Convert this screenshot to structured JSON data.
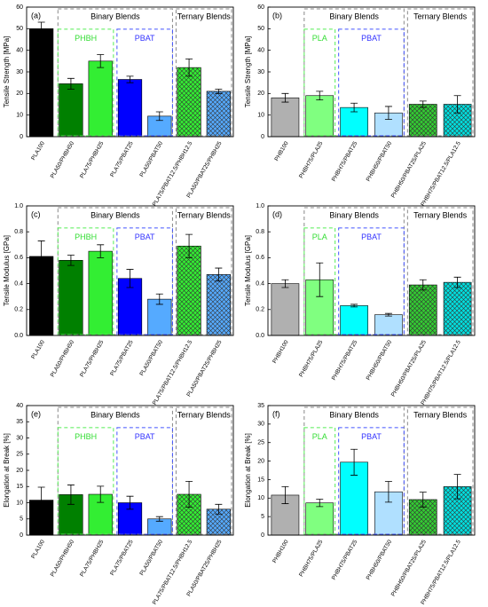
{
  "chart_data": [
    {
      "type": "bar",
      "label": "(a)",
      "y_label": "Tensile Strength [MPa]",
      "categories": [
        "PLA100",
        "PLA50/PHBH50",
        "PLA75/PHBH25",
        "PLA75/PBAT25",
        "PLA50/PBAT50",
        "PLA75/PBAT12.5/PHBH12.5",
        "PLA50/PBAT25/PHBH25"
      ],
      "values": [
        50,
        24.5,
        35,
        26.5,
        9.5,
        32,
        21
      ],
      "errors": [
        3,
        2.5,
        3,
        1.5,
        2,
        4,
        1
      ],
      "colors": [
        "#000000",
        "#008000",
        "#33ee33",
        "#0000ff",
        "#55aaff",
        "#33ee33",
        "#55aaff"
      ],
      "hatched": [
        false,
        false,
        false,
        false,
        false,
        true,
        true
      ],
      "ylim": [
        0,
        60
      ],
      "yticks": [
        0,
        10,
        20,
        30,
        40,
        50,
        60
      ],
      "binary_label": "Binary Blends",
      "ternary_label": "Ternary Blends",
      "group1_label": "PHBH",
      "group2_label": "PBAT"
    },
    {
      "type": "bar",
      "label": "(b)",
      "y_label": "Tensile Strength [MPa]",
      "categories": [
        "PHB100",
        "PHBH75/PLA25",
        "PHBH75/PBAT25",
        "PHBH50/PBAT50",
        "PHBH50/PBAT25/PLA25",
        "PHBH75/PBAT12.5/PLA12.5"
      ],
      "values": [
        18,
        19,
        13.5,
        11,
        15,
        15
      ],
      "errors": [
        2,
        2,
        2,
        3,
        1.5,
        4
      ],
      "colors": [
        "#b0b0b0",
        "#80ff80",
        "#00ffff",
        "#b0e0ff",
        "#33cc33",
        "#00e0e0"
      ],
      "hatched": [
        false,
        false,
        false,
        false,
        true,
        true
      ],
      "ylim": [
        0,
        60
      ],
      "yticks": [
        0,
        10,
        20,
        30,
        40,
        50,
        60
      ],
      "binary_label": "Binary Blends",
      "ternary_label": "Ternary Blends",
      "group1_label": "PLA",
      "group2_label": "PBAT"
    },
    {
      "type": "bar",
      "label": "(c)",
      "y_label": "Tensile Modulus [GPa]",
      "categories": [
        "PLA100",
        "PLA50/PHBH50",
        "PLA75/PHBH25",
        "PLA75/PBAT25",
        "PLA50/PBAT50",
        "PLA75/PBAT12.5/PHBH12.5",
        "PLA50/PBAT25/PHBH25"
      ],
      "values": [
        0.61,
        0.58,
        0.65,
        0.44,
        0.28,
        0.69,
        0.47
      ],
      "errors": [
        0.12,
        0.04,
        0.05,
        0.07,
        0.04,
        0.09,
        0.05
      ],
      "colors": [
        "#000000",
        "#008000",
        "#33ee33",
        "#0000ff",
        "#55aaff",
        "#33ee33",
        "#55aaff"
      ],
      "hatched": [
        false,
        false,
        false,
        false,
        false,
        true,
        true
      ],
      "ylim": [
        0,
        1
      ],
      "yticks": [
        {
          "value": 0,
          "label": "0.0"
        },
        0.2,
        0.4,
        0.6,
        0.8,
        {
          "value": 1,
          "label": "1.0"
        }
      ],
      "binary_label": "Binary Blends",
      "ternary_label": "Ternary Blends",
      "group1_label": "PHBH",
      "group2_label": "PBAT"
    },
    {
      "type": "bar",
      "label": "(d)",
      "y_label": "Tensile Modulus [GPa]",
      "categories": [
        "PHBH100",
        "PHBH75/PLA25",
        "PHBH75/PBAT25",
        "PHBH50/PBAT50",
        "PHBH50/PBAT25/PLA25",
        "PHBH75/PBAT12.5/PLA12.5"
      ],
      "values": [
        0.4,
        0.43,
        0.23,
        0.16,
        0.39,
        0.41
      ],
      "errors": [
        0.03,
        0.13,
        0.01,
        0.01,
        0.04,
        0.04
      ],
      "colors": [
        "#b0b0b0",
        "#80ff80",
        "#00ffff",
        "#b0e0ff",
        "#33cc33",
        "#00e0e0"
      ],
      "hatched": [
        false,
        false,
        false,
        false,
        true,
        true
      ],
      "ylim": [
        0,
        1
      ],
      "yticks": [
        {
          "value": 0,
          "label": "0.0"
        },
        0.2,
        0.4,
        0.6,
        0.8,
        {
          "value": 1,
          "label": "1.0"
        }
      ],
      "binary_label": "Binary Blends",
      "ternary_label": "Ternary Blends",
      "group1_label": "PLA",
      "group2_label": "PBAT"
    },
    {
      "type": "bar",
      "label": "(e)",
      "y_label": "Elongation at Break [%]",
      "categories": [
        "PLA100",
        "PLA50/PHBH50",
        "PLA75/PHBH25",
        "PLA75/PBAT25",
        "PLA50/PBAT50",
        "PLA75/PBAT12.5/PHBH12.5",
        "PLA50/PBAT25/PHBH25"
      ],
      "values": [
        10.8,
        12.5,
        12.6,
        10,
        5,
        12.6,
        8
      ],
      "errors": [
        4,
        3,
        2.5,
        2,
        0.7,
        4,
        1.5
      ],
      "colors": [
        "#000000",
        "#008000",
        "#33ee33",
        "#0000ff",
        "#55aaff",
        "#33ee33",
        "#55aaff"
      ],
      "hatched": [
        false,
        false,
        false,
        false,
        false,
        true,
        true
      ],
      "ylim": [
        0,
        40
      ],
      "yticks": [
        0,
        5,
        10,
        15,
        20,
        25,
        30,
        35,
        40
      ],
      "binary_label": "Binary Blends",
      "ternary_label": "Ternary Blends",
      "group1_label": "PHBH",
      "group2_label": "PBAT"
    },
    {
      "type": "bar",
      "label": "(f)",
      "y_label": "Elongation at Break [%]",
      "categories": [
        "PHBH100",
        "PHBH75/PLA25",
        "PHBH75/PBAT25",
        "PHBH50/PBAT50",
        "PHBH50/PBAT25/PLA25",
        "PHBH75/PBAT12.5/PLA12.5"
      ],
      "values": [
        10.8,
        8.7,
        19.7,
        11.7,
        9.6,
        13.1
      ],
      "errors": [
        2.3,
        1,
        3.5,
        2.8,
        2,
        3.3
      ],
      "colors": [
        "#b0b0b0",
        "#80ff80",
        "#00ffff",
        "#b0e0ff",
        "#33cc33",
        "#00e0e0"
      ],
      "hatched": [
        false,
        false,
        false,
        false,
        true,
        true
      ],
      "ylim": [
        0,
        35
      ],
      "yticks": [
        0,
        5,
        10,
        15,
        20,
        25,
        30,
        35
      ],
      "binary_label": "Binary Blends",
      "ternary_label": "Ternary Blends",
      "group1_label": "PLA",
      "group2_label": "PBAT"
    }
  ]
}
